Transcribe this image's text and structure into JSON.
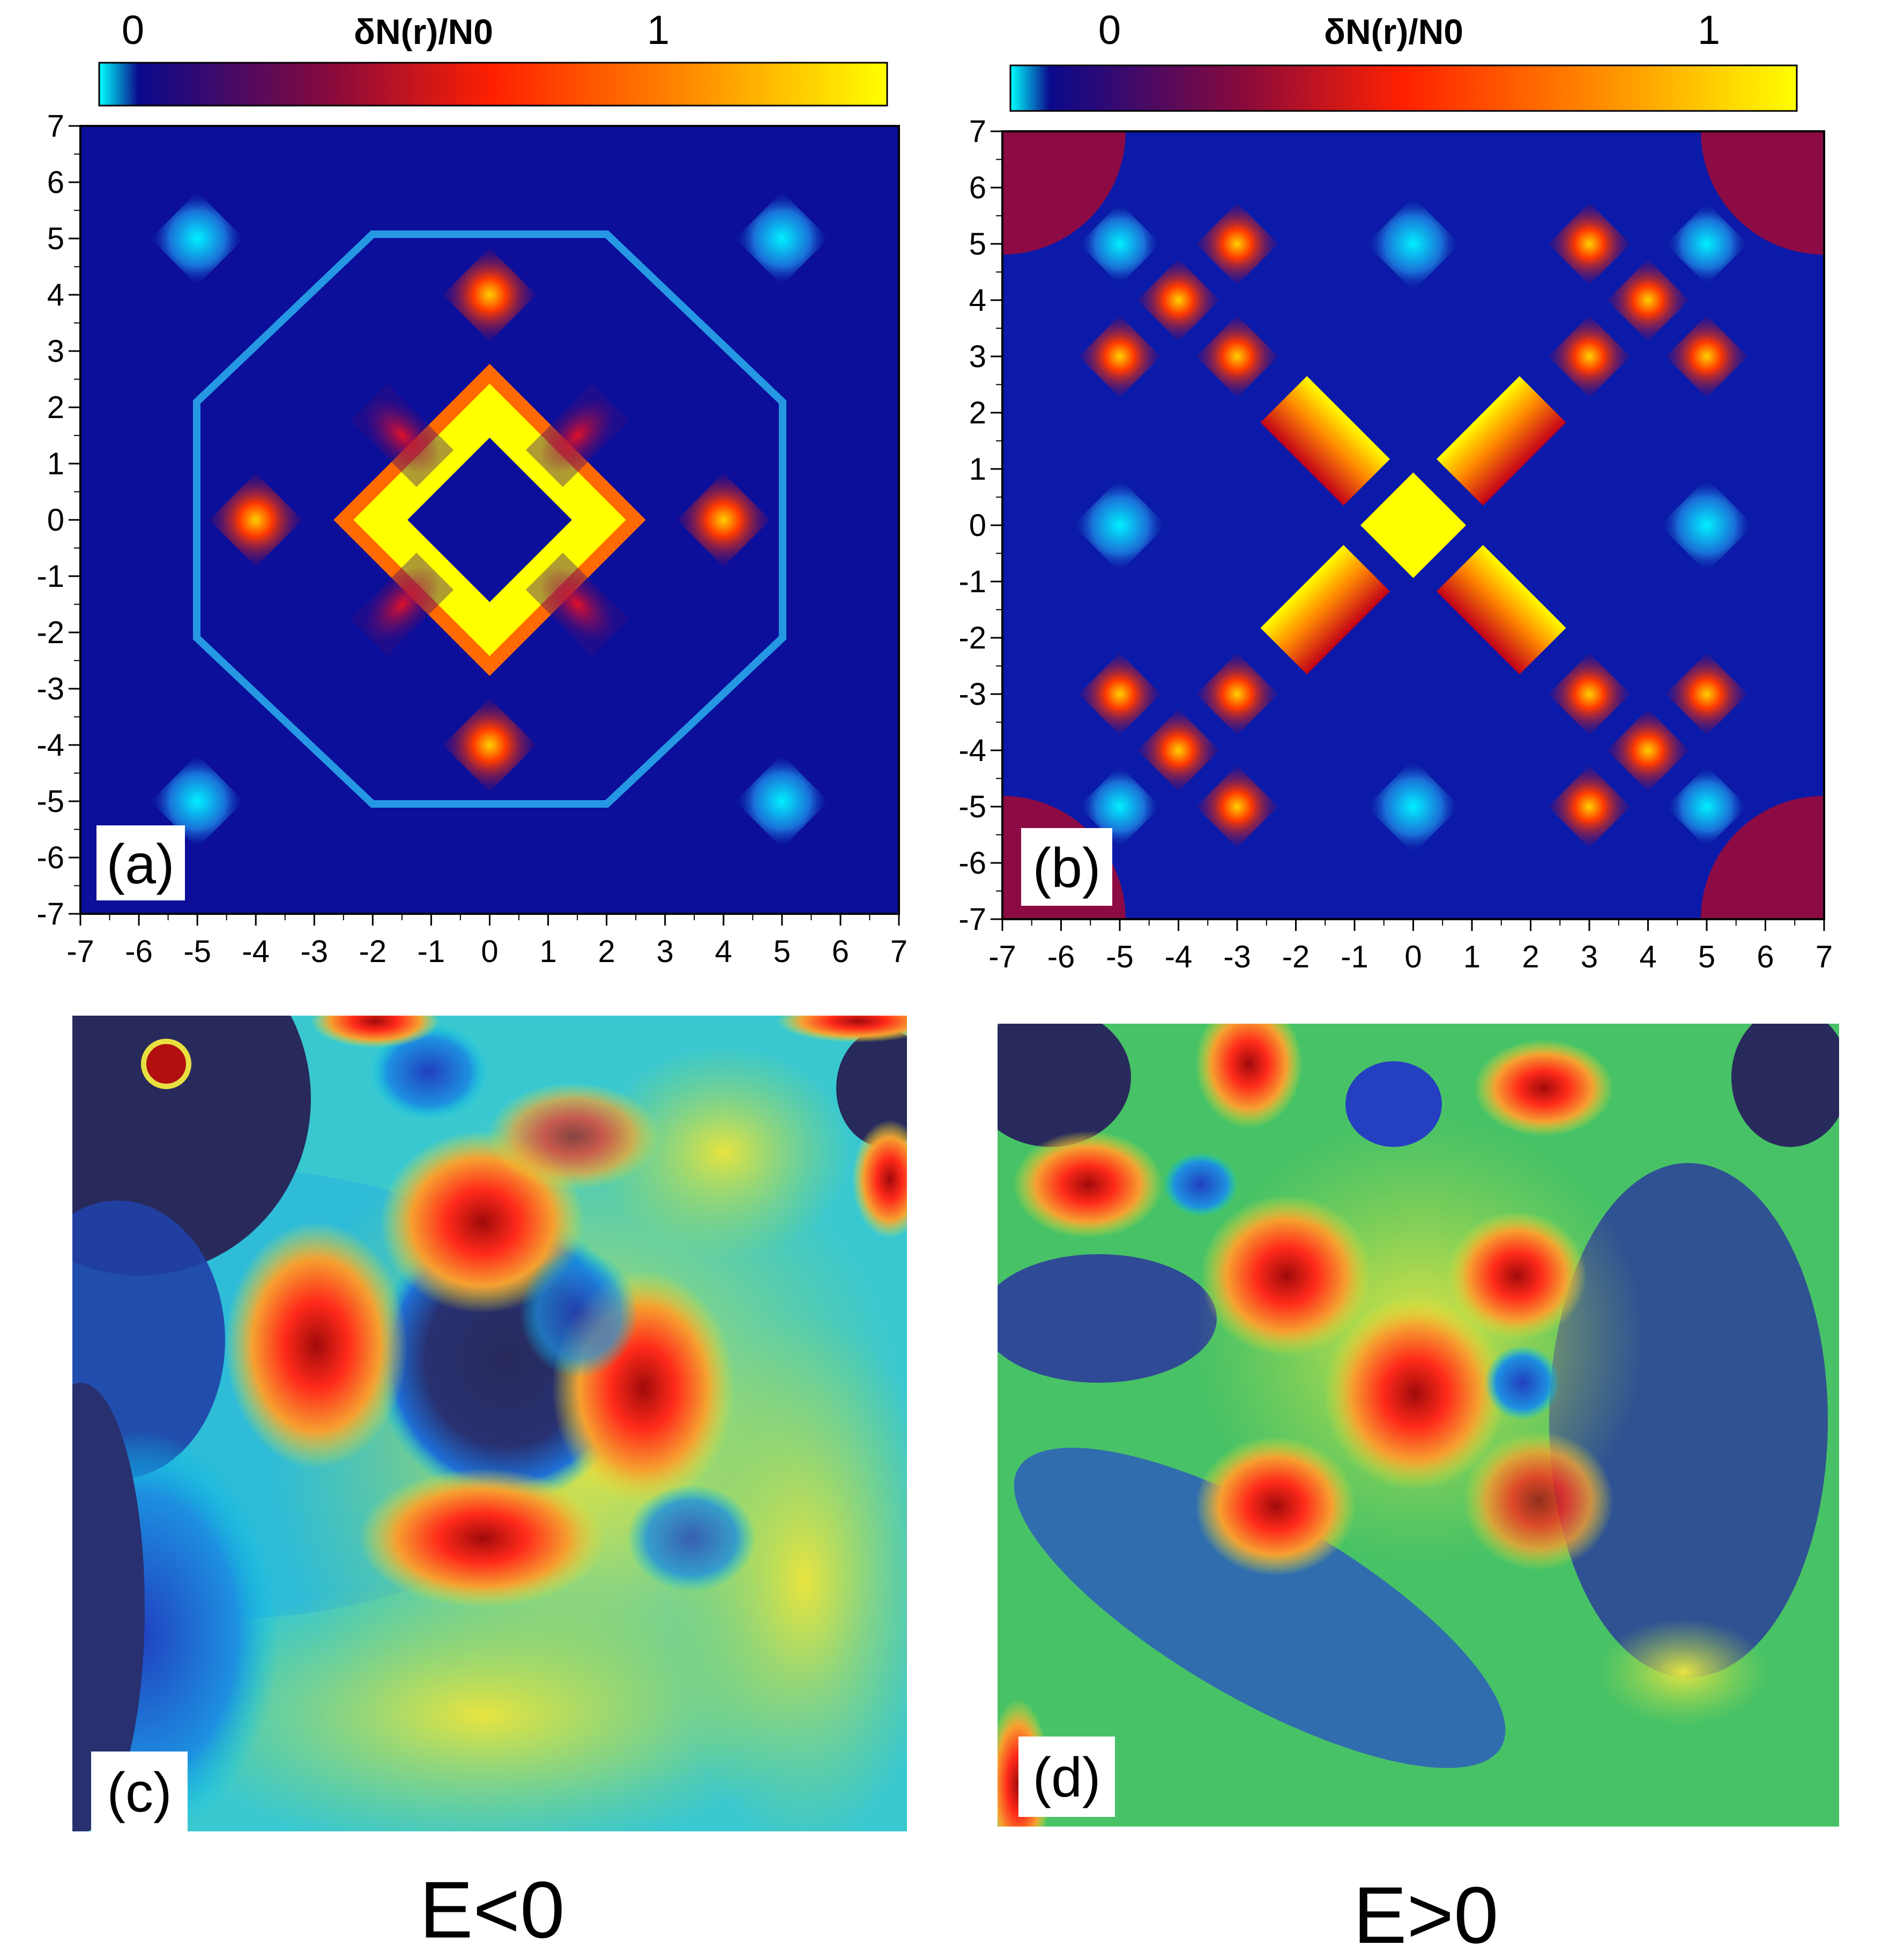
{
  "colors": {
    "colormap_top": [
      "#00ffff",
      "#0a0a8c",
      "#8b0a3a",
      "#ff2000",
      "#ff8c00",
      "#ffff00"
    ],
    "colormap_bottom": [
      "#282a5c",
      "#1e4fcf",
      "#00c8e6",
      "#46c84a",
      "#e6e632",
      "#ff2a1a",
      "#a00a0a"
    ]
  },
  "chart_data": [
    {
      "type": "heatmap",
      "panel": "(a)",
      "colorbar": {
        "label": "δN(r)/N0",
        "ticks": [
          "0",
          "1"
        ]
      },
      "xlim": [
        -7,
        7
      ],
      "ylim": [
        -7,
        7
      ],
      "xticks": [
        "-7",
        "-6",
        "-5",
        "-4",
        "-3",
        "-2",
        "-1",
        "0",
        "1",
        "2",
        "3",
        "4",
        "5",
        "6",
        "7"
      ],
      "yticks": [
        "7",
        "6",
        "5",
        "4",
        "3",
        "2",
        "1",
        "0",
        "-1",
        "-2",
        "-3",
        "-4",
        "-5",
        "-6",
        "-7"
      ],
      "features": [
        {
          "shape": "diamond-ring",
          "x": 0,
          "y": 0,
          "size": 2,
          "value": 1.2
        },
        {
          "shape": "diamond",
          "x": 0,
          "y": 4,
          "size": 0.8,
          "value": 0.9
        },
        {
          "shape": "diamond",
          "x": 0,
          "y": -4,
          "size": 0.8,
          "value": 0.9
        },
        {
          "shape": "diamond",
          "x": 4,
          "y": 0,
          "size": 0.8,
          "value": 0.9
        },
        {
          "shape": "diamond",
          "x": -4,
          "y": 0,
          "size": 0.8,
          "value": 0.9
        },
        {
          "shape": "bar",
          "x": -1.5,
          "y": 1.5,
          "size": 1.6,
          "value": 0.4
        },
        {
          "shape": "bar",
          "x": 1.5,
          "y": 1.5,
          "size": 1.6,
          "value": 0.4
        },
        {
          "shape": "bar",
          "x": -1.5,
          "y": -1.5,
          "size": 1.6,
          "value": 0.4
        },
        {
          "shape": "bar",
          "x": 1.5,
          "y": -1.5,
          "size": 1.6,
          "value": 0.4
        },
        {
          "shape": "diamond",
          "x": -5,
          "y": 5,
          "size": 0.8,
          "value": -0.2
        },
        {
          "shape": "diamond",
          "x": 5,
          "y": 5,
          "size": 0.8,
          "value": -0.2
        },
        {
          "shape": "diamond",
          "x": -5,
          "y": -5,
          "size": 0.8,
          "value": -0.2
        },
        {
          "shape": "diamond",
          "x": 5,
          "y": -5,
          "size": 0.8,
          "value": -0.2
        }
      ]
    },
    {
      "type": "heatmap",
      "panel": "(b)",
      "colorbar": {
        "label": "δN(r)/N0",
        "ticks": [
          "0",
          "1"
        ]
      },
      "xlim": [
        -7,
        7
      ],
      "ylim": [
        -7,
        7
      ],
      "xticks": [
        "-7",
        "-6",
        "-5",
        "-4",
        "-3",
        "-2",
        "-1",
        "0",
        "1",
        "2",
        "3",
        "4",
        "5",
        "6",
        "7"
      ],
      "yticks": [
        "7",
        "6",
        "5",
        "4",
        "3",
        "2",
        "1",
        "0",
        "-1",
        "-2",
        "-3",
        "-4",
        "-5",
        "-6",
        "-7"
      ],
      "features": [
        {
          "shape": "diamond",
          "x": 0,
          "y": 0,
          "size": 0.9,
          "value": 1.2
        },
        {
          "shape": "bar",
          "x": -1.5,
          "y": 1.5,
          "size": 2,
          "value": 1.1
        },
        {
          "shape": "bar",
          "x": 1.5,
          "y": 1.5,
          "size": 2,
          "value": 1.1
        },
        {
          "shape": "bar",
          "x": -1.5,
          "y": -1.5,
          "size": 2,
          "value": 1.1
        },
        {
          "shape": "bar",
          "x": 1.5,
          "y": -1.5,
          "size": 2,
          "value": 1.1
        },
        {
          "shape": "diamond",
          "x": -4,
          "y": 4,
          "size": 0.7,
          "value": 0.8
        },
        {
          "shape": "diamond",
          "x": -3,
          "y": 5,
          "size": 0.7,
          "value": 0.8
        },
        {
          "shape": "diamond",
          "x": -5,
          "y": 3,
          "size": 0.7,
          "value": 0.8
        },
        {
          "shape": "diamond",
          "x": -3,
          "y": 3,
          "size": 0.7,
          "value": 0.8
        },
        {
          "shape": "diamond",
          "x": 4,
          "y": 4,
          "size": 0.7,
          "value": 0.8
        },
        {
          "shape": "diamond",
          "x": 3,
          "y": 5,
          "size": 0.7,
          "value": 0.8
        },
        {
          "shape": "diamond",
          "x": 5,
          "y": 3,
          "size": 0.7,
          "value": 0.8
        },
        {
          "shape": "diamond",
          "x": 3,
          "y": 3,
          "size": 0.7,
          "value": 0.8
        },
        {
          "shape": "diamond",
          "x": -4,
          "y": -4,
          "size": 0.7,
          "value": 0.8
        },
        {
          "shape": "diamond",
          "x": -3,
          "y": -5,
          "size": 0.7,
          "value": 0.8
        },
        {
          "shape": "diamond",
          "x": -5,
          "y": -3,
          "size": 0.7,
          "value": 0.8
        },
        {
          "shape": "diamond",
          "x": -3,
          "y": -3,
          "size": 0.7,
          "value": 0.8
        },
        {
          "shape": "diamond",
          "x": 4,
          "y": -4,
          "size": 0.7,
          "value": 0.8
        },
        {
          "shape": "diamond",
          "x": 3,
          "y": -5,
          "size": 0.7,
          "value": 0.8
        },
        {
          "shape": "diamond",
          "x": 5,
          "y": -3,
          "size": 0.7,
          "value": 0.8
        },
        {
          "shape": "diamond",
          "x": 3,
          "y": -3,
          "size": 0.7,
          "value": 0.8
        },
        {
          "shape": "diamond",
          "x": 0,
          "y": 5,
          "size": 0.8,
          "value": -0.2
        },
        {
          "shape": "diamond",
          "x": 0,
          "y": -5,
          "size": 0.8,
          "value": -0.2
        },
        {
          "shape": "diamond",
          "x": -5,
          "y": 0,
          "size": 0.8,
          "value": -0.2
        },
        {
          "shape": "diamond",
          "x": 5,
          "y": 0,
          "size": 0.8,
          "value": -0.2
        },
        {
          "shape": "diamond",
          "x": -5,
          "y": 5,
          "size": 0.7,
          "value": -0.2
        },
        {
          "shape": "diamond",
          "x": 5,
          "y": 5,
          "size": 0.7,
          "value": -0.2
        },
        {
          "shape": "diamond",
          "x": -5,
          "y": -5,
          "size": 0.7,
          "value": -0.2
        },
        {
          "shape": "diamond",
          "x": 5,
          "y": -5,
          "size": 0.7,
          "value": -0.2
        }
      ]
    },
    {
      "type": "heatmap",
      "panel": "(c)",
      "caption": "E<0"
    },
    {
      "type": "heatmap",
      "panel": "(d)",
      "caption": "E>0"
    }
  ]
}
